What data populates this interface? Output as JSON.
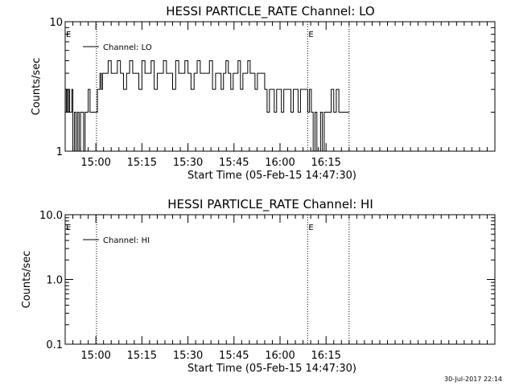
{
  "chart_data": [
    {
      "type": "line",
      "title": "HESSI PARTICLE_RATE Channel: LO",
      "xlabel": "Start Time (05-Feb-15 14:47:30)",
      "ylabel": "Counts/sec",
      "yscale": "log",
      "ylim": [
        1,
        10
      ],
      "y_tick_labels": [
        "1",
        "10"
      ],
      "y_tick_values": [
        1,
        10
      ],
      "x_range_minutes": [
        -10,
        130
      ],
      "x_tick_labels": [
        "15:00",
        "15:15",
        "15:30",
        "15:45",
        "16:00",
        "16:15"
      ],
      "x_tick_minutes": [
        0,
        15,
        30,
        45,
        60,
        75
      ],
      "vlines_minutes": [
        0.2,
        69.0,
        82.5
      ],
      "markers": [
        {
          "text": "E",
          "x_minute": -10
        },
        {
          "text": "E",
          "x_minute": 69.0
        }
      ],
      "legend": {
        "label": "Channel: LO",
        "placement": "top-left"
      },
      "series": [
        {
          "name": "Channel: LO",
          "level_values": [
            1,
            2,
            3,
            4,
            5
          ],
          "segments": [
            {
              "from_minute": -10.0,
              "to_minute": -7.5,
              "pattern": "2,3,2,3,2,2,3"
            },
            {
              "from_minute": -7.5,
              "to_minute": -2.5,
              "pattern": "1,2,1,2,1,2,2,1,2,2"
            },
            {
              "from_minute": -2.5,
              "to_minute": 0.5,
              "pattern": "3,2,2,2,2"
            },
            {
              "from_minute": 0.5,
              "to_minute": 3.0,
              "pattern": "3,3,4,3,4,4"
            },
            {
              "from_minute": 3.0,
              "to_minute": 40.0,
              "pattern": "4,5,4,4,5,4,3,4,5,4,4,3,5,4,4,5,3,4,4,5,4,4,3,5,4,4,5,4,3,4,5,4,4,4,5,3,4"
            },
            {
              "from_minute": 40.0,
              "to_minute": 55.0,
              "pattern": "4,3,4,5,4,3,4,4,5,3,4,4,5,4,4,3,4,4,4"
            },
            {
              "from_minute": 55.0,
              "to_minute": 69.0,
              "pattern": "3,2,3,3,2,3,3,2,3,3,3,2,3,3,2,3,3,3"
            },
            {
              "from_minute": 69.0,
              "to_minute": 75.0,
              "pattern": "2,3,2,1,2,1,1,2,1,2"
            },
            {
              "from_minute": 75.0,
              "to_minute": 82.5,
              "pattern": "2,2,3,2,3,2,2,2,2"
            }
          ]
        }
      ]
    },
    {
      "type": "line",
      "title": "HESSI PARTICLE_RATE Channel: HI",
      "xlabel": "Start Time (05-Feb-15 14:47:30)",
      "ylabel": "Counts/sec",
      "yscale": "log",
      "ylim": [
        0.1,
        10
      ],
      "y_tick_labels": [
        "0.1",
        "1.0",
        "10.0"
      ],
      "y_tick_values": [
        0.1,
        1,
        10
      ],
      "x_range_minutes": [
        -10,
        130
      ],
      "x_tick_labels": [
        "15:00",
        "15:15",
        "15:30",
        "15:45",
        "16:00",
        "16:15"
      ],
      "x_tick_minutes": [
        0,
        15,
        30,
        45,
        60,
        75
      ],
      "vlines_minutes": [
        0.2,
        69.0,
        82.5
      ],
      "markers": [
        {
          "text": "E",
          "x_minute": -10
        },
        {
          "text": "E",
          "x_minute": 69.0
        }
      ],
      "legend": {
        "label": "Channel: HI",
        "placement": "top-left"
      },
      "series": [
        {
          "name": "Channel: HI",
          "segments": []
        }
      ]
    }
  ],
  "footer": {
    "timestamp": "30-Jul-2017 22:14"
  }
}
